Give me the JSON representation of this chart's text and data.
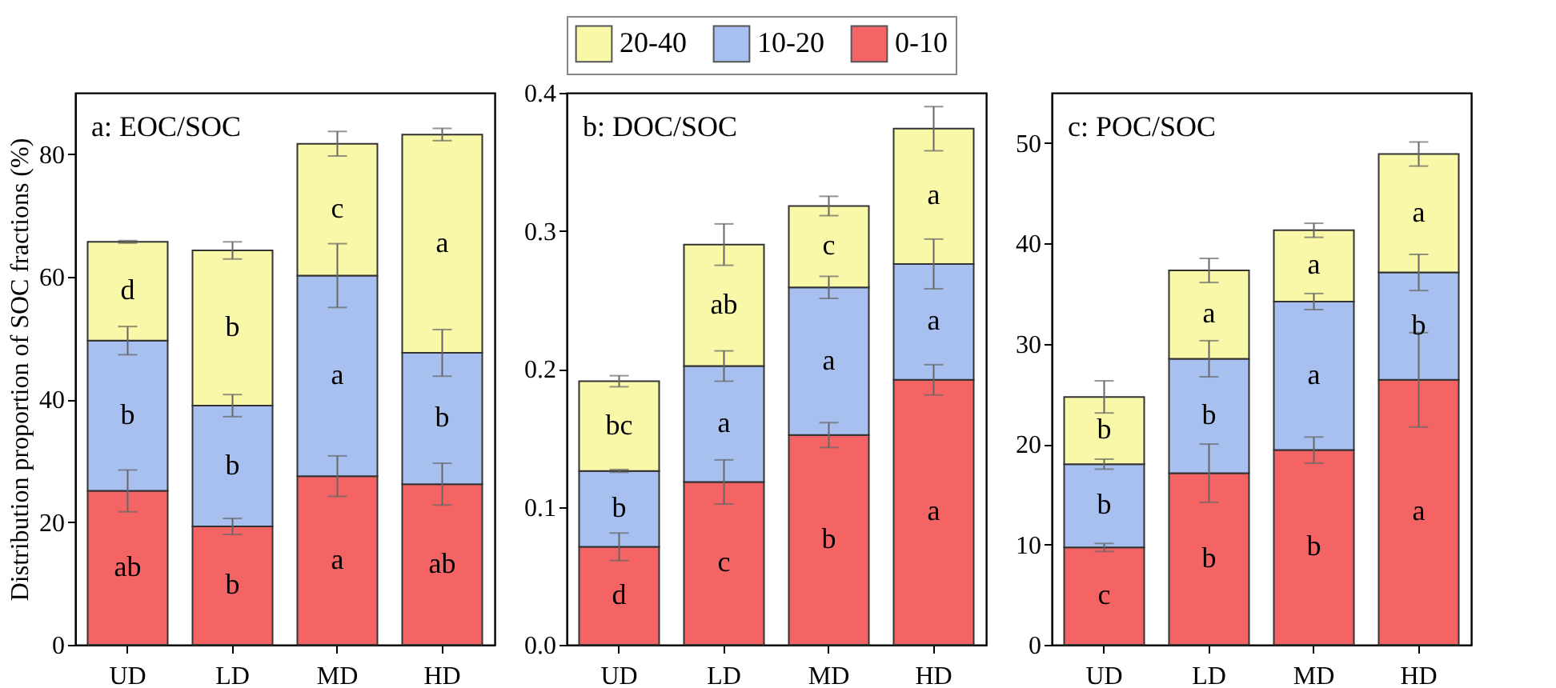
{
  "chart_data": [
    {
      "type": "bar",
      "stacked": true,
      "title": "a: EOC/SOC",
      "ylabel": "Distribution proportion of SOC fractions (%)",
      "categories": [
        "UD",
        "LD",
        "MD",
        "HD"
      ],
      "ylim": [
        0,
        90
      ],
      "yticks": [
        0,
        20,
        40,
        60,
        80
      ],
      "grid": false,
      "series": [
        {
          "color": "#f46464",
          "values": [
            25.1,
            19.3,
            27.5,
            26.2
          ],
          "errors": [
            3.4,
            1.3,
            3.3,
            3.4
          ],
          "value_labels": [
            "ab",
            "b",
            "a",
            "ab"
          ]
        },
        {
          "color": "#a8c0f0",
          "values": [
            24.5,
            19.7,
            32.7,
            21.4
          ],
          "errors": [
            2.3,
            1.8,
            5.2,
            3.8
          ],
          "value_labels": [
            "b",
            "b",
            "a",
            "b"
          ]
        },
        {
          "color": "#f8f8a8",
          "values": [
            16.1,
            25.3,
            21.5,
            35.6
          ],
          "errors": [
            0.2,
            1.4,
            2.0,
            1.0
          ],
          "value_labels": [
            "d",
            "b",
            "c",
            "a"
          ]
        }
      ]
    },
    {
      "type": "bar",
      "stacked": true,
      "title": "b: DOC/SOC",
      "categories": [
        "UD",
        "LD",
        "MD",
        "HD"
      ],
      "ylim": [
        0,
        0.4
      ],
      "yticks": [
        {
          "value": 0,
          "label": "0.0"
        },
        0.1,
        0.2,
        0.3,
        0.4
      ],
      "grid": false,
      "legend": "top",
      "series": [
        {
          "name": "0-10",
          "color": "#f46464",
          "values": [
            0.071,
            0.118,
            0.152,
            0.192
          ],
          "errors": [
            0.01,
            0.016,
            0.009,
            0.011
          ],
          "value_labels": [
            "d",
            "c",
            "b",
            "a"
          ]
        },
        {
          "name": "10-20",
          "color": "#a8c0f0",
          "values": [
            0.055,
            0.084,
            0.107,
            0.084
          ],
          "errors": [
            0.001,
            0.011,
            0.008,
            0.018
          ],
          "value_labels": [
            "b",
            "a",
            "a",
            "a"
          ]
        },
        {
          "name": "20-40",
          "color": "#f8f8a8",
          "values": [
            0.065,
            0.088,
            0.059,
            0.098
          ],
          "errors": [
            0.004,
            0.015,
            0.007,
            0.016
          ],
          "value_labels": [
            "bc",
            "ab",
            "c",
            "a"
          ]
        }
      ]
    },
    {
      "type": "bar",
      "stacked": true,
      "title": "c: POC/SOC",
      "categories": [
        "UD",
        "LD",
        "MD",
        "HD"
      ],
      "ylim": [
        0,
        55
      ],
      "yticks": [
        0,
        10,
        20,
        30,
        40,
        50
      ],
      "grid": false,
      "series": [
        {
          "color": "#f46464",
          "values": [
            9.7,
            17.1,
            19.4,
            26.4
          ],
          "errors": [
            0.4,
            2.9,
            1.3,
            4.7
          ],
          "value_labels": [
            "c",
            "b",
            "b",
            "a"
          ]
        },
        {
          "color": "#a8c0f0",
          "values": [
            8.3,
            11.4,
            14.8,
            10.7
          ],
          "errors": [
            0.5,
            1.8,
            0.8,
            1.8
          ],
          "value_labels": [
            "b",
            "b",
            "a",
            "b"
          ]
        },
        {
          "color": "#f8f8a8",
          "values": [
            6.7,
            8.8,
            7.1,
            11.8
          ],
          "errors": [
            1.6,
            1.2,
            0.7,
            1.2
          ],
          "value_labels": [
            "b",
            "a",
            "a",
            "a"
          ]
        }
      ]
    }
  ]
}
